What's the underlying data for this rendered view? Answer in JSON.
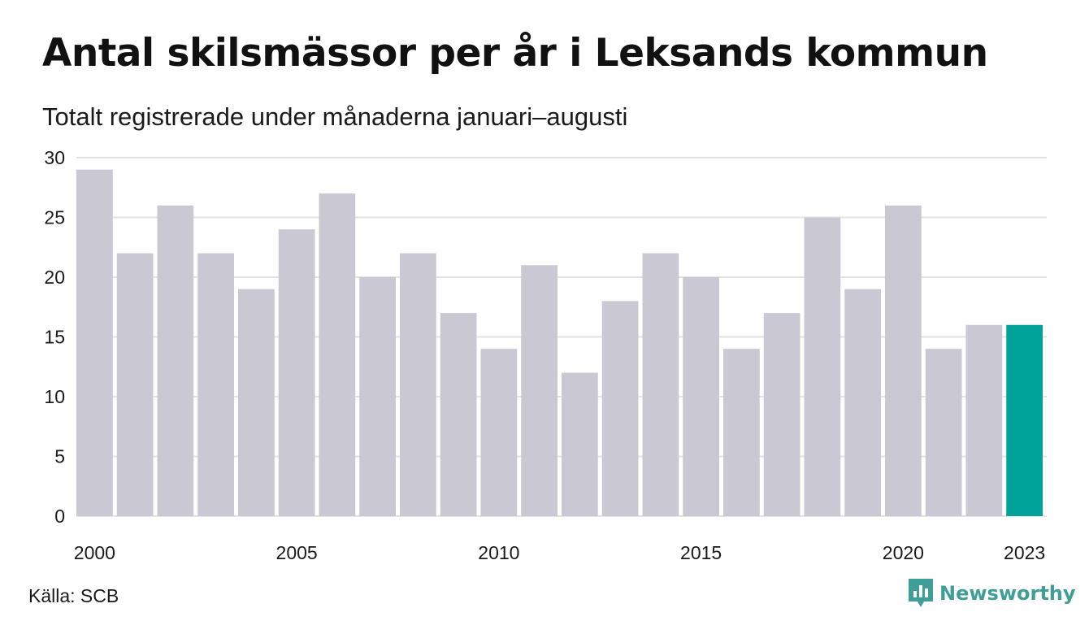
{
  "header": {
    "title": "Antal skilsmässor per år i Leksands kommun",
    "subtitle": "Totalt registrerade under månaderna januari–augusti"
  },
  "footer": {
    "source": "Källa: SCB",
    "brand": "Newsworthy"
  },
  "colors": {
    "bar": "#c9c8d3",
    "highlight": "#00a39a",
    "grid": "#e3e3e3",
    "brand": "#3f9e97"
  },
  "chart_data": {
    "type": "bar",
    "categories": [
      "2000",
      "2001",
      "2002",
      "2003",
      "2004",
      "2005",
      "2006",
      "2007",
      "2008",
      "2009",
      "2010",
      "2011",
      "2012",
      "2013",
      "2014",
      "2015",
      "2016",
      "2017",
      "2018",
      "2019",
      "2020",
      "2021",
      "2022",
      "2023"
    ],
    "values": [
      29,
      22,
      26,
      22,
      19,
      24,
      27,
      20,
      22,
      17,
      14,
      21,
      12,
      18,
      22,
      20,
      14,
      17,
      25,
      19,
      26,
      14,
      16,
      16
    ],
    "highlight_category": "2023",
    "x_tick_labels": [
      "2000",
      "2005",
      "2010",
      "2015",
      "2020",
      "2023"
    ],
    "y_ticks": [
      0,
      5,
      10,
      15,
      20,
      25,
      30
    ],
    "ylim": [
      0,
      30
    ],
    "grid": true,
    "legend": "none"
  }
}
